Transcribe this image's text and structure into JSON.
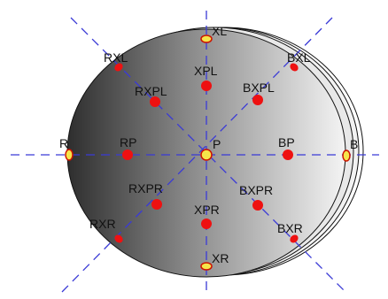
{
  "colors": {
    "axis": "#3a3ad6",
    "marker": "#ee1111",
    "edge_marker": "#f6e54a",
    "gradient_dark": "#2e2e2e",
    "gradient_light": "#f4f4f4"
  },
  "points": {
    "XL": "XL",
    "RXL": "RXL",
    "BXL": "BXL",
    "XPL": "XPL",
    "RXPL": "RXPL",
    "BXPL": "BXPL",
    "R": "R",
    "RP": "RP",
    "P": "P",
    "BP": "BP",
    "B": "B",
    "RXPR": "RXPR",
    "BXPR": "BXPR",
    "XPR": "XPR",
    "RXR": "RXR",
    "BXR": "BXR",
    "XR": "XR"
  }
}
